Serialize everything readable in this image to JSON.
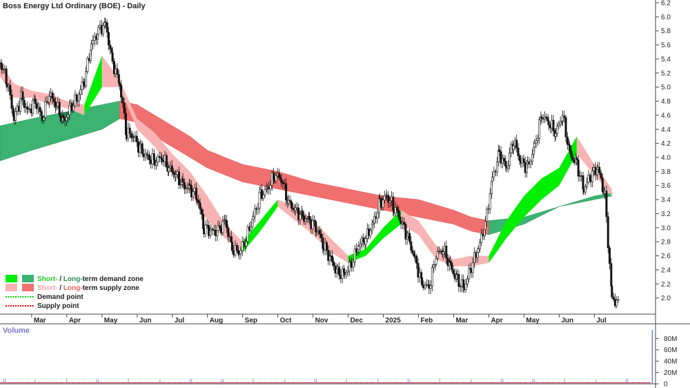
{
  "chart_data": {
    "type": "line",
    "title": "Boss Energy Ltd Ordinary (BOE) - Daily",
    "price_axis": {
      "ylim": [
        1.8,
        6.2
      ],
      "ticks": [
        "2.0",
        "2.2",
        "2.4",
        "2.6",
        "2.8",
        "3.0",
        "3.2",
        "3.4",
        "3.6",
        "3.8",
        "4.0",
        "4.2",
        "4.4",
        "4.6",
        "4.8",
        "5.0",
        "5.2",
        "5.4",
        "5.6",
        "5.8",
        "6.0",
        "6.2"
      ]
    },
    "x_ticks": [
      "Mar",
      "Apr",
      "May",
      "Jun",
      "Jul",
      "Aug",
      "Sep",
      "Oct",
      "Nov",
      "Dec",
      "2025",
      "Feb",
      "Mar",
      "Apr",
      "May",
      "Jun",
      "Jul"
    ],
    "x_tick_months": [
      1,
      2,
      3,
      4,
      5,
      6,
      7,
      8,
      9,
      10,
      11,
      12,
      13,
      14,
      15,
      16,
      17
    ],
    "x_range_months": [
      0.1,
      18.7
    ],
    "grid": false,
    "legend": {
      "placement": "bottom-left",
      "items": [
        {
          "parts": [
            {
              "text": "Short-",
              "color": "#22cc22"
            },
            {
              "text": " / ",
              "color": "#222222"
            },
            {
              "text": "Long-",
              "color": "#2e8b57"
            },
            {
              "text": "term demand zone",
              "color": "#222222"
            }
          ],
          "swatches": [
            "#00ee00",
            "#3cb371"
          ]
        },
        {
          "parts": [
            {
              "text": "Short-",
              "color": "#f4a6a6"
            },
            {
              "text": " / ",
              "color": "#222222"
            },
            {
              "text": "Long-",
              "color": "#e8625e"
            },
            {
              "text": "term supply zone",
              "color": "#222222"
            }
          ],
          "swatches": [
            "#f8b4b4",
            "#f07070"
          ]
        },
        {
          "parts": [
            {
              "text": "Demand point",
              "color": "#222222"
            }
          ],
          "line": "#00cc00"
        },
        {
          "parts": [
            {
              "text": "Supply point",
              "color": "#222222"
            }
          ],
          "line": "#dd0000"
        }
      ]
    },
    "series": [
      {
        "name": "Price",
        "x": [
          0.1,
          0.3,
          0.5,
          0.7,
          0.9,
          1.1,
          1.3,
          1.5,
          1.7,
          1.9,
          2.1,
          2.3,
          2.5,
          2.7,
          2.9,
          3.1,
          3.3,
          3.5,
          3.7,
          3.9,
          4.1,
          4.3,
          4.5,
          4.7,
          4.9,
          5.1,
          5.3,
          5.5,
          5.7,
          5.9,
          6.1,
          6.3,
          6.5,
          6.7,
          6.9,
          7.1,
          7.3,
          7.5,
          7.7,
          7.9,
          8.1,
          8.3,
          8.5,
          8.7,
          8.9,
          9.1,
          9.3,
          9.5,
          9.7,
          9.9,
          10.1,
          10.3,
          10.5,
          10.7,
          10.9,
          11.1,
          11.3,
          11.5,
          11.7,
          11.9,
          12.1,
          12.3,
          12.5,
          12.7,
          12.9,
          13.1,
          13.3,
          13.5,
          13.7,
          13.9,
          14.1,
          14.3,
          14.5,
          14.7,
          14.9,
          15.1,
          15.3,
          15.5,
          15.7,
          15.9,
          16.1,
          16.3,
          16.5,
          16.7,
          16.9,
          17.1,
          17.3,
          17.5,
          17.7,
          17.9,
          18.1,
          18.3,
          18.5,
          18.7
        ],
        "values": [
          5.35,
          5.1,
          4.55,
          4.85,
          4.65,
          4.8,
          4.55,
          4.9,
          4.75,
          4.5,
          4.7,
          4.85,
          5.1,
          5.6,
          5.8,
          5.9,
          5.35,
          5.05,
          4.35,
          4.3,
          4.1,
          4.0,
          3.95,
          4.0,
          3.85,
          3.75,
          3.6,
          3.55,
          3.45,
          3.0,
          2.95,
          2.95,
          3.1,
          2.7,
          2.65,
          2.85,
          3.15,
          3.45,
          3.55,
          3.75,
          3.7,
          3.35,
          3.25,
          3.15,
          3.1,
          3.0,
          2.75,
          2.55,
          2.35,
          2.35,
          2.5,
          2.75,
          2.85,
          3.05,
          3.35,
          3.45,
          3.3,
          3.1,
          2.85,
          2.55,
          2.2,
          2.15,
          2.6,
          2.7,
          2.45,
          2.25,
          2.15,
          2.45,
          2.7,
          3.05,
          3.7,
          4.05,
          3.85,
          4.25,
          3.95,
          3.85,
          4.15,
          4.6,
          4.5,
          4.35,
          4.6,
          4.05,
          3.9,
          3.55,
          3.75,
          3.85,
          3.45,
          2.0,
          1.9,
          null,
          null,
          null,
          null,
          null
        ]
      },
      {
        "name": "Short-term zone top",
        "x": [
          0.1,
          0.5,
          1,
          1.5,
          2,
          2.5,
          3,
          3.5,
          4,
          4.5,
          5,
          5.5,
          6,
          6.5,
          7,
          7.5,
          8,
          8.5,
          9,
          9.5,
          10,
          10.5,
          11,
          11.5,
          12,
          12.5,
          13,
          13.5,
          14,
          14.5,
          15,
          15.5,
          16,
          16.5,
          17,
          17.5
        ],
        "values": [
          5.35,
          5.05,
          4.95,
          4.9,
          4.8,
          4.75,
          5.45,
          5.1,
          4.55,
          4.35,
          4.05,
          3.8,
          3.45,
          3.05,
          2.8,
          3.1,
          3.4,
          3.3,
          3.1,
          2.85,
          2.6,
          2.7,
          3.0,
          3.25,
          3.1,
          2.75,
          2.55,
          2.6,
          2.6,
          3.1,
          3.45,
          3.7,
          3.85,
          4.3,
          3.9,
          3.55
        ]
      },
      {
        "name": "Short-term zone bottom",
        "x": [
          0.1,
          0.5,
          1,
          1.5,
          2,
          2.5,
          3,
          3.5,
          4,
          4.5,
          5,
          5.5,
          6,
          6.5,
          7,
          7.5,
          8,
          8.5,
          9,
          9.5,
          10,
          10.5,
          11,
          11.5,
          12,
          12.5,
          13,
          13.5,
          14,
          14.5,
          15,
          15.5,
          16,
          16.5,
          17,
          17.5
        ],
        "values": [
          5.15,
          4.85,
          4.85,
          4.75,
          4.7,
          4.6,
          5.0,
          5.0,
          4.4,
          4.15,
          3.8,
          3.5,
          3.1,
          2.85,
          2.65,
          2.95,
          3.3,
          3.1,
          2.9,
          2.65,
          2.5,
          2.6,
          2.85,
          3.05,
          2.9,
          2.55,
          2.45,
          2.45,
          2.5,
          2.85,
          3.15,
          3.4,
          3.6,
          4.05,
          3.75,
          3.45
        ]
      },
      {
        "name": "Long-term zone top",
        "x": [
          0.1,
          1,
          2,
          3,
          3.5,
          4,
          4.5,
          5,
          5.5,
          6,
          7,
          8,
          9,
          10,
          11,
          12,
          13,
          13.5,
          14,
          15,
          16,
          17,
          17.5
        ],
        "values": [
          4.45,
          4.55,
          4.65,
          4.75,
          4.8,
          4.75,
          4.6,
          4.45,
          4.3,
          4.1,
          3.9,
          3.8,
          3.65,
          3.55,
          3.45,
          3.4,
          3.25,
          3.15,
          3.1,
          3.15,
          3.3,
          3.45,
          3.5
        ]
      },
      {
        "name": "Long-term zone bottom",
        "x": [
          0.1,
          1,
          2,
          3,
          3.5,
          4,
          4.5,
          5,
          5.5,
          6,
          7,
          8,
          9,
          10,
          11,
          12,
          13,
          13.5,
          14,
          15,
          16,
          17,
          17.5
        ],
        "values": [
          3.95,
          4.1,
          4.25,
          4.4,
          4.55,
          4.5,
          4.3,
          4.15,
          4.0,
          3.85,
          3.65,
          3.55,
          3.45,
          3.35,
          3.25,
          3.15,
          3.05,
          2.95,
          2.9,
          3.05,
          3.3,
          3.4,
          3.45
        ]
      }
    ],
    "volume": {
      "title": "Volume",
      "ylim": [
        0,
        95
      ],
      "ticks": [
        "0",
        "20M",
        "40M",
        "60M",
        "80M"
      ],
      "tick_values": [
        0,
        20,
        40,
        60,
        80
      ],
      "unit": "M",
      "baseline_value": 2,
      "spikes": [
        {
          "x": 18.65,
          "value": 95
        }
      ]
    }
  }
}
